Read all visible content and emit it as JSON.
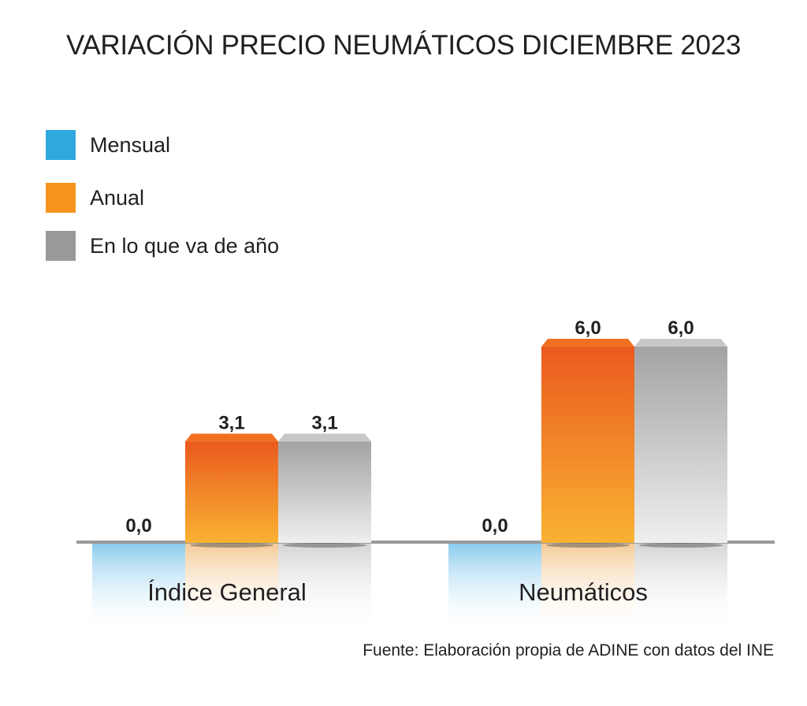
{
  "chart_data": {
    "type": "bar",
    "title": "VARIACIÓN PRECIO NEUMÁTICOS DICIEMBRE 2023",
    "categories": [
      "Índice General",
      "Neumáticos"
    ],
    "series": [
      {
        "name": "Mensual",
        "color": "#2fa8e0",
        "values": [
          0.0,
          0.0
        ],
        "labels": [
          "0,0",
          "0,0"
        ]
      },
      {
        "name": "Anual",
        "color": "#f7941d",
        "values": [
          3.1,
          6.0
        ],
        "labels": [
          "3,1",
          "6,0"
        ]
      },
      {
        "name": "En lo que va de año",
        "color": "#999999",
        "values": [
          3.1,
          6.0
        ],
        "labels": [
          "3,1",
          "6,0"
        ]
      }
    ],
    "legend_position": "top-left",
    "grid": false,
    "xlabel": "",
    "ylabel": "",
    "source": "Fuente: Elaboración propia de ADINE con datos del INE"
  }
}
